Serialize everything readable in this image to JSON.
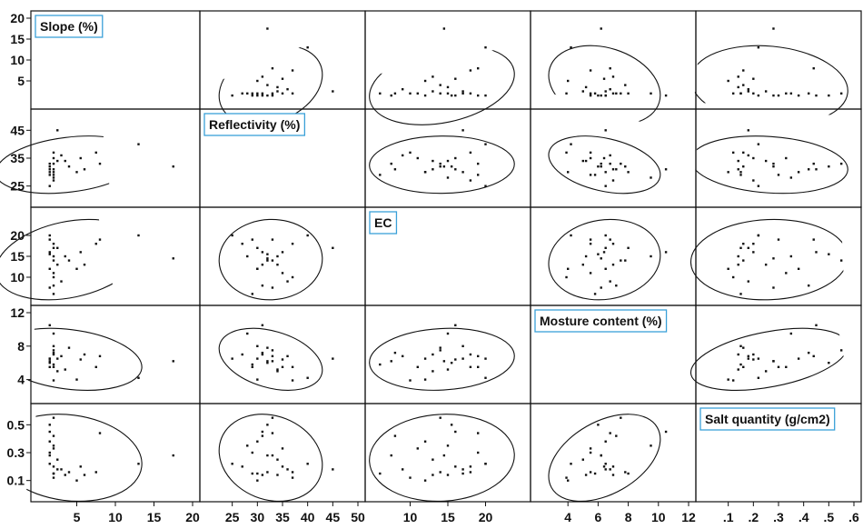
{
  "chart_data": {
    "type": "scatter",
    "subtype": "scatterplot-matrix",
    "ellipses": true,
    "grid": false,
    "variables": [
      {
        "name": "Slope (%)",
        "range": [
          0,
          20
        ],
        "ticks": [
          5,
          10,
          15,
          20
        ],
        "left_ticks": [
          5,
          10,
          15,
          20
        ]
      },
      {
        "name": "Reflectivity (%)",
        "range": [
          20,
          50
        ],
        "ticks": [
          25,
          30,
          35,
          40,
          45,
          50
        ],
        "left_ticks": [
          25,
          35,
          45
        ]
      },
      {
        "name": "EC",
        "range": [
          5,
          25
        ],
        "ticks": [
          10,
          15,
          20
        ],
        "left_ticks": [
          10,
          15,
          20
        ]
      },
      {
        "name": "Mosture content (%)",
        "range": [
          2,
          12
        ],
        "ticks": [
          4,
          6,
          8,
          10,
          12
        ],
        "left_ticks": [
          4,
          8,
          12
        ]
      },
      {
        "name": "Salt quantity (g/cm2)",
        "range": [
          0,
          0.6
        ],
        "ticks": [
          0.1,
          0.2,
          0.3,
          0.4,
          0.5,
          0.6
        ],
        "left_ticks": [
          0.1,
          0.3,
          0.5
        ]
      }
    ],
    "bottom_tick_labels": [
      [
        "5",
        "10",
        "15",
        "20"
      ],
      [
        "25",
        "30",
        "35",
        "40",
        "45",
        "50"
      ],
      [
        "10",
        "15",
        "20"
      ],
      [
        "4",
        "6",
        "8",
        "10",
        "12"
      ],
      [
        ".1",
        ".2",
        ".3",
        ".4",
        ".5",
        ".6"
      ]
    ],
    "left_tick_labels": [
      [
        "5",
        "10",
        "15",
        "20"
      ],
      [
        "25",
        "35",
        "45"
      ],
      [
        "10",
        "15",
        "20"
      ],
      [
        "4",
        "8",
        "12"
      ],
      [
        "0.1",
        "0.3",
        "0.5"
      ]
    ],
    "observations": [
      [
        1.5,
        25,
        20,
        6.5,
        0.22
      ],
      [
        2,
        27,
        18,
        7.0,
        0.2
      ],
      [
        1.5,
        29,
        19,
        5.5,
        0.3
      ],
      [
        2,
        30,
        17,
        8.0,
        0.15
      ],
      [
        1.5,
        31,
        16,
        10.5,
        0.45
      ],
      [
        2,
        28,
        15,
        9.5,
        0.35
      ],
      [
        1.5,
        32,
        15.5,
        6.0,
        0.5
      ],
      [
        2,
        33,
        14,
        7.5,
        0.55
      ],
      [
        2.5,
        34,
        13,
        5.0,
        0.25
      ],
      [
        1.5,
        30,
        12,
        6.5,
        0.38
      ],
      [
        2,
        35,
        11,
        5.5,
        0.33
      ],
      [
        3,
        36,
        9,
        6.8,
        0.18
      ],
      [
        2,
        31,
        8,
        7.2,
        0.42
      ],
      [
        1.5,
        33,
        7.5,
        6.2,
        0.28
      ],
      [
        2,
        29,
        6,
        5.8,
        0.15
      ],
      [
        3.5,
        34,
        15,
        5.2,
        0.14
      ],
      [
        4,
        32,
        14,
        7.8,
        0.16
      ],
      [
        5.5,
        35,
        16,
        6.4,
        0.2
      ],
      [
        6,
        31,
        13,
        7.0,
        0.14
      ],
      [
        7.5,
        37,
        18,
        5.5,
        0.16
      ],
      [
        8,
        33,
        19,
        6.8,
        0.44
      ],
      [
        5,
        30,
        12,
        4.0,
        0.1
      ],
      [
        13,
        40,
        20,
        4.2,
        0.22
      ],
      [
        17.5,
        32,
        14.5,
        6.2,
        0.28
      ],
      [
        2.5,
        45,
        17,
        6.5,
        0.18
      ],
      [
        2,
        37,
        10,
        3.9,
        0.12
      ]
    ]
  },
  "colors": {
    "points": "#111111",
    "frame": "#111111",
    "label_box_border": "#3aa0d8",
    "background": "#ffffff"
  }
}
